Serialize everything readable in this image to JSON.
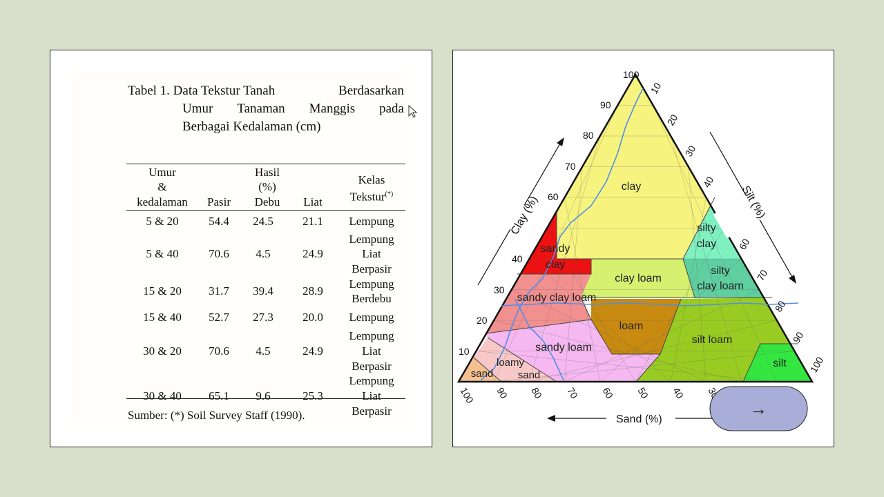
{
  "table": {
    "caption": {
      "line1_a": "Tabel 1. Data Tekstur Tanah",
      "line1_b": "Berdasarkan",
      "line2_words": [
        "Umur",
        "Tanaman",
        "Manggis",
        "pada"
      ],
      "line3": "Berbagai Kedalaman (cm)"
    },
    "headers": {
      "umur_1": "Umur",
      "umur_2": "&",
      "umur_3": "kedalaman",
      "pasir": "Pasir",
      "hasil_1": "Hasil",
      "hasil_2": "(%)",
      "debu": "Debu",
      "liat": "Liat",
      "kelas_1": "Kelas",
      "kelas_2": "Tekstur",
      "kelas_sup": "(*)"
    },
    "rows": [
      {
        "umur": "5 & 20",
        "pasir": "54.4",
        "debu": "24.5",
        "liat": "21.1",
        "kelas": [
          "Lempung"
        ]
      },
      {
        "umur": "5 & 40",
        "pasir": "70.6",
        "debu": "4.5",
        "liat": "24.9",
        "kelas": [
          "Lempung",
          "Liat",
          "Berpasir"
        ]
      },
      {
        "umur": "15 & 20",
        "pasir": "31.7",
        "debu": "39.4",
        "liat": "28.9",
        "kelas": [
          "Lempung",
          "Berdebu"
        ]
      },
      {
        "umur": "15 & 40",
        "pasir": "52.7",
        "debu": "27.3",
        "liat": "20.0",
        "kelas": [
          "Lempung"
        ]
      },
      {
        "umur": "30 & 20",
        "pasir": "70.6",
        "debu": "4.5",
        "liat": "24.9",
        "kelas": [
          "Lempung",
          "Liat",
          "Berpasir"
        ]
      },
      {
        "umur": "30 & 40",
        "pasir": "65.1",
        "debu": "9.6",
        "liat": "25.3",
        "kelas": [
          "Lempung",
          "Liat",
          "Berpasir"
        ]
      }
    ],
    "source": "Sumber: (*) Soil Survey Staff (1990)."
  },
  "triangle": {
    "clay_axis_label": "Clay (%)",
    "silt_axis_label": "Silt (%)",
    "sand_axis_label": "Sand (%)",
    "ticks": [
      "10",
      "20",
      "30",
      "40",
      "50",
      "60",
      "70",
      "80",
      "90",
      "100"
    ],
    "regions": {
      "clay": "clay",
      "silty_clay_1": "silty",
      "silty_clay_2": "clay",
      "sandy_clay_1": "sandy",
      "sandy_clay_2": "clay",
      "clay_loam": "clay loam",
      "silty_clay_loam_1": "silty",
      "silty_clay_loam_2": "clay loam",
      "sandy_clay_loam": "sandy clay loam",
      "loam": "loam",
      "silt_loam": "silt loam",
      "sandy_loam": "sandy loam",
      "loamy_sand_1": "loamy",
      "loamy_sand_2": "sand",
      "sand": "sand",
      "silt": "silt"
    },
    "colors": {
      "clay": "#f7f37f",
      "silty_clay": "#7ff0c0",
      "sandy_clay": "#ee1111",
      "clay_loam": "#d6f070",
      "silty_clay_loam": "#5fcf9f",
      "sandy_clay_loam": "#f29090",
      "loam": "#c88a10",
      "silt_loam": "#99cc22",
      "sandy_loam": "#f5b8f0",
      "loamy_sand": "#f8c8c8",
      "sand": "#f5c090",
      "silt": "#33e640",
      "curve": "#4f8ee8"
    },
    "arrow_symbol": "→"
  },
  "icons": {
    "cursor": "mouse-pointer-icon",
    "next": "arrow-right-icon"
  }
}
